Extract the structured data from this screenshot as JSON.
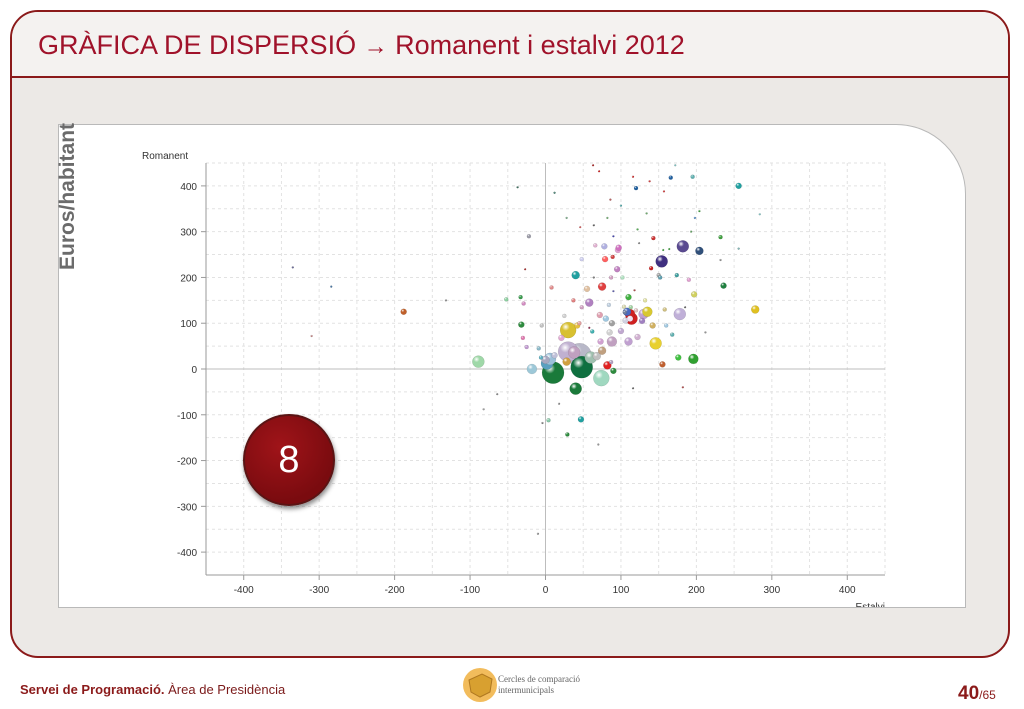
{
  "slide": {
    "title": "GRÀFICA DE DISPERSIÓ",
    "title_arrow": "→",
    "title_rest": "Romanent i estalvi 2012",
    "side_label": "Euros/habitant",
    "badge_number": "8",
    "footer_org": "Servei de Programació.",
    "footer_area": "Àrea de Presidència",
    "logo_line1": "Cercles de comparació",
    "logo_line2": "intermunicipals",
    "page_current": "40",
    "page_total": "/65",
    "colors": {
      "accent": "#8b1a1a",
      "title": "#a0122a",
      "frame_bg": "#ece9e6"
    }
  },
  "chart_data": {
    "type": "scatter",
    "xlabel": "Estalvi",
    "ylabel": "Romanent",
    "xlim": [
      -450,
      450
    ],
    "ylim": [
      -450,
      450
    ],
    "xticks": [
      -400,
      -300,
      -200,
      -100,
      0,
      100,
      200,
      300,
      400
    ],
    "yticks": [
      -400,
      -300,
      -200,
      -100,
      0,
      100,
      200,
      300,
      400
    ],
    "grid": true,
    "points": [
      {
        "x": -335,
        "y": 222,
        "r": 1,
        "c": "#5a5a8a"
      },
      {
        "x": -284,
        "y": 180,
        "r": 1,
        "c": "#3a6a9a"
      },
      {
        "x": -310,
        "y": 72,
        "r": 1,
        "c": "#c08080"
      },
      {
        "x": -188,
        "y": 125,
        "r": 3,
        "c": "#c0602a"
      },
      {
        "x": -132,
        "y": 150,
        "r": 1,
        "c": "#888888"
      },
      {
        "x": -89,
        "y": 16,
        "r": 6,
        "c": "#9fd8a8"
      },
      {
        "x": -82,
        "y": -88,
        "r": 1,
        "c": "#999999"
      },
      {
        "x": -64,
        "y": -55,
        "r": 1,
        "c": "#888888"
      },
      {
        "x": -52,
        "y": 152,
        "r": 2,
        "c": "#8cd0a0"
      },
      {
        "x": -37,
        "y": 397,
        "r": 1,
        "c": "#336655"
      },
      {
        "x": -33,
        "y": 157,
        "r": 2,
        "c": "#3b9c4f"
      },
      {
        "x": -32,
        "y": 97,
        "r": 3,
        "c": "#2e8b3e"
      },
      {
        "x": -30,
        "y": 68,
        "r": 2,
        "c": "#e07ab0"
      },
      {
        "x": -29,
        "y": 143,
        "r": 2,
        "c": "#d28ac0"
      },
      {
        "x": -27,
        "y": 218,
        "r": 1,
        "c": "#aa3333"
      },
      {
        "x": -25,
        "y": 48,
        "r": 2,
        "c": "#c09ad0"
      },
      {
        "x": -22,
        "y": 290,
        "r": 2,
        "c": "#9c9ca8"
      },
      {
        "x": -18,
        "y": 0,
        "r": 5,
        "c": "#9dc8d8"
      },
      {
        "x": -9,
        "y": 45,
        "r": 2,
        "c": "#8ab8c8"
      },
      {
        "x": -6,
        "y": 25,
        "r": 2,
        "c": "#5fb0c0"
      },
      {
        "x": -5,
        "y": 95,
        "r": 2,
        "c": "#c0c0c0"
      },
      {
        "x": -4,
        "y": -118,
        "r": 1,
        "c": "#777777"
      },
      {
        "x": 0,
        "y": 20,
        "r": 4,
        "c": "#a8a8c0"
      },
      {
        "x": 2,
        "y": 12,
        "r": 6,
        "c": "#5aa0c0"
      },
      {
        "x": 4,
        "y": -112,
        "r": 2,
        "c": "#88c8a8"
      },
      {
        "x": 6,
        "y": 22,
        "r": 6,
        "c": "#9cc0d8"
      },
      {
        "x": 8,
        "y": 178,
        "r": 2,
        "c": "#e08a8a"
      },
      {
        "x": 10,
        "y": -8,
        "r": 11,
        "c": "#1a7a3a"
      },
      {
        "x": 12,
        "y": 385,
        "r": 1,
        "c": "#2a6a5a"
      },
      {
        "x": 12,
        "y": 30,
        "r": 3,
        "c": "#c0c0d8"
      },
      {
        "x": 18,
        "y": -76,
        "r": 1,
        "c": "#888888"
      },
      {
        "x": 21,
        "y": 68,
        "r": 3,
        "c": "#e0a8d0"
      },
      {
        "x": 25,
        "y": 116,
        "r": 2,
        "c": "#d0d0d0"
      },
      {
        "x": 28,
        "y": 330,
        "r": 1,
        "c": "#6aa07a"
      },
      {
        "x": 28,
        "y": 16,
        "r": 4,
        "c": "#d0a040"
      },
      {
        "x": 30,
        "y": 38,
        "r": 10,
        "c": "#c0b0d0"
      },
      {
        "x": 30,
        "y": 85,
        "r": 8,
        "c": "#d8c030"
      },
      {
        "x": 29,
        "y": -143,
        "r": 2,
        "c": "#2e8b3e"
      },
      {
        "x": 37,
        "y": 150,
        "r": 2,
        "c": "#e08080"
      },
      {
        "x": 38,
        "y": 36,
        "r": 6,
        "c": "#c0a0c0"
      },
      {
        "x": 40,
        "y": -43,
        "r": 6,
        "c": "#1a7a3a"
      },
      {
        "x": 40,
        "y": 205,
        "r": 4,
        "c": "#20a0a0"
      },
      {
        "x": 42,
        "y": 95,
        "r": 3,
        "c": "#e6c040"
      },
      {
        "x": 45,
        "y": 30,
        "r": 12,
        "c": "#b8b8c8"
      },
      {
        "x": 45,
        "y": 100,
        "r": 2,
        "c": "#e0a0a0"
      },
      {
        "x": 46,
        "y": 310,
        "r": 1,
        "c": "#d06060"
      },
      {
        "x": 47,
        "y": -110,
        "r": 3,
        "c": "#20a0a0"
      },
      {
        "x": 48,
        "y": 135,
        "r": 2,
        "c": "#d0a0c0"
      },
      {
        "x": 48,
        "y": 240,
        "r": 2,
        "c": "#d0d0f0"
      },
      {
        "x": 48,
        "y": 4,
        "r": 11,
        "c": "#0f7040"
      },
      {
        "x": 55,
        "y": 175,
        "r": 3,
        "c": "#e0c0a0"
      },
      {
        "x": 58,
        "y": 145,
        "r": 4,
        "c": "#b080c0"
      },
      {
        "x": 58,
        "y": 90,
        "r": 1,
        "c": "#882244"
      },
      {
        "x": 60,
        "y": 25,
        "r": 6,
        "c": "#a0c0b0"
      },
      {
        "x": 62,
        "y": 82,
        "r": 2,
        "c": "#40b0b0"
      },
      {
        "x": 63,
        "y": 445,
        "r": 1,
        "c": "#aa2222"
      },
      {
        "x": 64,
        "y": 314,
        "r": 1,
        "c": "#606060"
      },
      {
        "x": 64,
        "y": 200,
        "r": 1,
        "c": "#666666"
      },
      {
        "x": 66,
        "y": 270,
        "r": 2,
        "c": "#e0b0d0"
      },
      {
        "x": 68,
        "y": 28,
        "r": 4,
        "c": "#c0c0c0"
      },
      {
        "x": 70,
        "y": -165,
        "r": 1,
        "c": "#888888"
      },
      {
        "x": 71,
        "y": 432,
        "r": 1,
        "c": "#cc2222"
      },
      {
        "x": 72,
        "y": 118,
        "r": 3,
        "c": "#e0a0b0"
      },
      {
        "x": 73,
        "y": 60,
        "r": 3,
        "c": "#d0a0d0"
      },
      {
        "x": 75,
        "y": 180,
        "r": 4,
        "c": "#e04040"
      },
      {
        "x": 75,
        "y": 40,
        "r": 4,
        "c": "#c0a080"
      },
      {
        "x": 74,
        "y": -20,
        "r": 8,
        "c": "#a0d8c0"
      },
      {
        "x": 78,
        "y": 268,
        "r": 3,
        "c": "#b0b0e0"
      },
      {
        "x": 79,
        "y": 240,
        "r": 3,
        "c": "#ff6060"
      },
      {
        "x": 80,
        "y": 110,
        "r": 3,
        "c": "#a0c8e0"
      },
      {
        "x": 82,
        "y": 8,
        "r": 4,
        "c": "#e02020"
      },
      {
        "x": 82,
        "y": 330,
        "r": 1,
        "c": "#60a060"
      },
      {
        "x": 84,
        "y": 140,
        "r": 2,
        "c": "#c0d0e0"
      },
      {
        "x": 85,
        "y": 80,
        "r": 3,
        "c": "#d0d0d0"
      },
      {
        "x": 86,
        "y": 370,
        "r": 1,
        "c": "#aa4444"
      },
      {
        "x": 87,
        "y": 200,
        "r": 2,
        "c": "#d0a0c0"
      },
      {
        "x": 87,
        "y": 15,
        "r": 2,
        "c": "#b0a0c0"
      },
      {
        "x": 88,
        "y": 60,
        "r": 5,
        "c": "#c0a0c0"
      },
      {
        "x": 88,
        "y": 100,
        "r": 3,
        "c": "#a0a0a0"
      },
      {
        "x": 89,
        "y": 245,
        "r": 2,
        "c": "#d04040"
      },
      {
        "x": 90,
        "y": 170,
        "r": 1,
        "c": "#6060aa"
      },
      {
        "x": 90,
        "y": -4,
        "r": 3,
        "c": "#2e8b3e"
      },
      {
        "x": 90,
        "y": 290,
        "r": 1,
        "c": "#4040aa"
      },
      {
        "x": 95,
        "y": 218,
        "r": 3,
        "c": "#c080c0"
      },
      {
        "x": 96,
        "y": 260,
        "r": 3,
        "c": "#e0a0d0"
      },
      {
        "x": 97,
        "y": 265,
        "r": 3,
        "c": "#d070c0"
      },
      {
        "x": 100,
        "y": 357,
        "r": 1,
        "c": "#40a0a0"
      },
      {
        "x": 100,
        "y": 83,
        "r": 3,
        "c": "#c0a8d0"
      },
      {
        "x": 102,
        "y": 200,
        "r": 2,
        "c": "#b0e0c0"
      },
      {
        "x": 104,
        "y": 136,
        "r": 2,
        "c": "#d8d8b0"
      },
      {
        "x": 105,
        "y": 124,
        "r": 2,
        "c": "#7080a0"
      },
      {
        "x": 106,
        "y": 106,
        "r": 3,
        "c": "#d0d0e0"
      },
      {
        "x": 108,
        "y": 125,
        "r": 4,
        "c": "#4a6ac0"
      },
      {
        "x": 110,
        "y": 157,
        "r": 3,
        "c": "#40b040"
      },
      {
        "x": 110,
        "y": 60,
        "r": 4,
        "c": "#c0a0d0"
      },
      {
        "x": 112,
        "y": 120,
        "r": 5,
        "c": "#d02020"
      },
      {
        "x": 112,
        "y": 110,
        "r": 3,
        "c": "#f0e0f0"
      },
      {
        "x": 113,
        "y": 135,
        "r": 2,
        "c": "#a0d0a0"
      },
      {
        "x": 114,
        "y": 110,
        "r": 6,
        "c": "#d02020"
      },
      {
        "x": 116,
        "y": 420,
        "r": 1,
        "c": "#cc2222"
      },
      {
        "x": 116,
        "y": -42,
        "r": 1,
        "c": "#666666"
      },
      {
        "x": 118,
        "y": 172,
        "r": 1,
        "c": "#aa4444"
      },
      {
        "x": 120,
        "y": 395,
        "r": 2,
        "c": "#2060a0"
      },
      {
        "x": 120,
        "y": 128,
        "r": 2,
        "c": "#e0c0c0"
      },
      {
        "x": 122,
        "y": 70,
        "r": 3,
        "c": "#d0b0d0"
      },
      {
        "x": 122,
        "y": 305,
        "r": 1,
        "c": "#40a040"
      },
      {
        "x": 124,
        "y": 275,
        "r": 1,
        "c": "#888888"
      },
      {
        "x": 128,
        "y": 105,
        "r": 3,
        "c": "#a080c0"
      },
      {
        "x": 130,
        "y": 120,
        "r": 5,
        "c": "#c0a0d0"
      },
      {
        "x": 132,
        "y": 150,
        "r": 2,
        "c": "#e0e0a0"
      },
      {
        "x": 134,
        "y": 340,
        "r": 1,
        "c": "#60a060"
      },
      {
        "x": 135,
        "y": 125,
        "r": 5,
        "c": "#d8c830"
      },
      {
        "x": 138,
        "y": 410,
        "r": 1,
        "c": "#cc3333"
      },
      {
        "x": 140,
        "y": 220,
        "r": 2,
        "c": "#cc2222"
      },
      {
        "x": 142,
        "y": 95,
        "r": 3,
        "c": "#d0b060"
      },
      {
        "x": 143,
        "y": 286,
        "r": 2,
        "c": "#cc3333"
      },
      {
        "x": 146,
        "y": 56,
        "r": 6,
        "c": "#e8d030"
      },
      {
        "x": 150,
        "y": 205,
        "r": 2,
        "c": "#a0a0a0"
      },
      {
        "x": 152,
        "y": 200,
        "r": 2,
        "c": "#60a0b0"
      },
      {
        "x": 154,
        "y": 235,
        "r": 6,
        "c": "#403080"
      },
      {
        "x": 155,
        "y": 10,
        "r": 3,
        "c": "#c06030"
      },
      {
        "x": 156,
        "y": 260,
        "r": 1,
        "c": "#40a040"
      },
      {
        "x": 157,
        "y": 388,
        "r": 1,
        "c": "#cc3333"
      },
      {
        "x": 158,
        "y": 130,
        "r": 2,
        "c": "#d0c080"
      },
      {
        "x": 160,
        "y": 95,
        "r": 2,
        "c": "#a0c8e0"
      },
      {
        "x": 164,
        "y": 262,
        "r": 1,
        "c": "#40a040"
      },
      {
        "x": 166,
        "y": 418,
        "r": 2,
        "c": "#2060a0"
      },
      {
        "x": 168,
        "y": 75,
        "r": 2,
        "c": "#60b0b0"
      },
      {
        "x": 172,
        "y": 445,
        "r": 1,
        "c": "#80c0c0"
      },
      {
        "x": 174,
        "y": 205,
        "r": 2,
        "c": "#40a0a0"
      },
      {
        "x": 176,
        "y": 25,
        "r": 3,
        "c": "#40c040"
      },
      {
        "x": 178,
        "y": 120,
        "r": 6,
        "c": "#c0b0d8"
      },
      {
        "x": 182,
        "y": 268,
        "r": 6,
        "c": "#5a4a90"
      },
      {
        "x": 182,
        "y": -40,
        "r": 1,
        "c": "#aa4444"
      },
      {
        "x": 185,
        "y": 135,
        "r": 1,
        "c": "#666666"
      },
      {
        "x": 190,
        "y": 195,
        "r": 2,
        "c": "#e0a0d0"
      },
      {
        "x": 193,
        "y": 300,
        "r": 1,
        "c": "#60a060"
      },
      {
        "x": 195,
        "y": 420,
        "r": 2,
        "c": "#60b0b0"
      },
      {
        "x": 196,
        "y": 22,
        "r": 5,
        "c": "#30a030"
      },
      {
        "x": 197,
        "y": 163,
        "r": 3,
        "c": "#d0d060"
      },
      {
        "x": 198,
        "y": 330,
        "r": 1,
        "c": "#4080c0"
      },
      {
        "x": 204,
        "y": 258,
        "r": 4,
        "c": "#30507a"
      },
      {
        "x": 204,
        "y": 345,
        "r": 1,
        "c": "#40a040"
      },
      {
        "x": 212,
        "y": 80,
        "r": 1,
        "c": "#888888"
      },
      {
        "x": 232,
        "y": 288,
        "r": 2,
        "c": "#40a040"
      },
      {
        "x": 232,
        "y": 238,
        "r": 1,
        "c": "#888888"
      },
      {
        "x": 236,
        "y": 182,
        "r": 3,
        "c": "#208040"
      },
      {
        "x": 256,
        "y": 400,
        "r": 3,
        "c": "#20a0a0"
      },
      {
        "x": 256,
        "y": 263,
        "r": 1,
        "c": "#60a0a0"
      },
      {
        "x": 278,
        "y": 130,
        "r": 4,
        "c": "#e0c020"
      },
      {
        "x": 284,
        "y": 338,
        "r": 1,
        "c": "#80c0c0"
      },
      {
        "x": -10,
        "y": -360,
        "r": 1,
        "c": "#888888"
      }
    ]
  }
}
